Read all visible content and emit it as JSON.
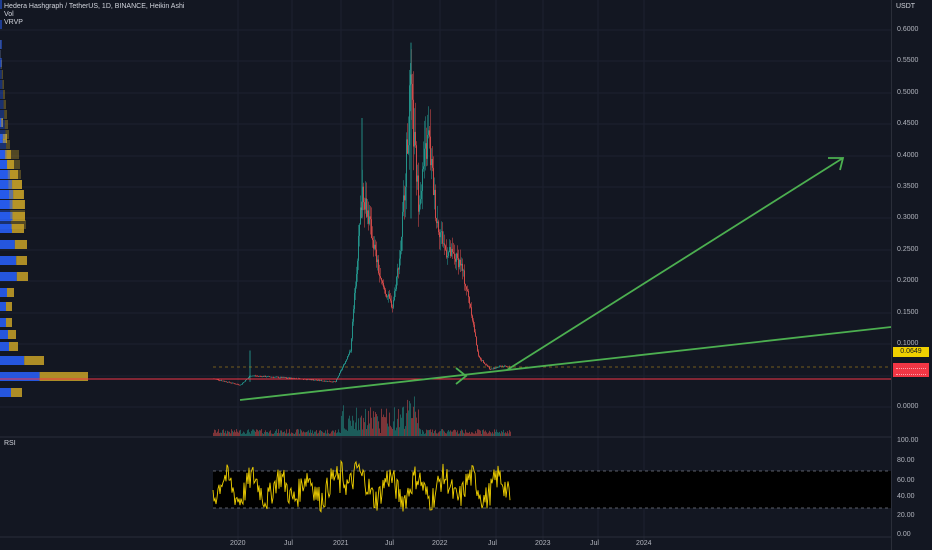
{
  "legend": {
    "title": "Hedera Hashgraph / TetherUS, 1D, BINANCE, Heikin Ashi",
    "vol": "Vol",
    "vrvp": "VRVP"
  },
  "currency": "USDT",
  "rsi_label": "RSI",
  "current_price": "0.0649",
  "price_axis_ticks": [
    "0.6000",
    "0.5500",
    "0.5000",
    "0.4500",
    "0.4000",
    "0.3500",
    "0.3000",
    "0.2500",
    "0.2000",
    "0.1500",
    "0.1000",
    "0.0000"
  ],
  "rsi_axis_ticks": [
    "100.00",
    "80.00",
    "60.00",
    "40.00",
    "20.00",
    "0.00"
  ],
  "time_axis_ticks": [
    "2020",
    "Jul",
    "2021",
    "Jul",
    "2022",
    "Jul",
    "2023",
    "Jul",
    "2024"
  ],
  "colors": {
    "background": "#131722",
    "bull": "#26a69a",
    "bear": "#ef5350",
    "arrow": "#4caf50",
    "support_line": "#f23645",
    "rsi_line": "#f0d000",
    "vrvp_up": "#2962ff",
    "vrvp_down": "#c9a227",
    "price_badge": "#f0d000"
  },
  "chart_data": {
    "type": "line",
    "series": [
      {
        "values_time": [
          "2019-10",
          "2020-01",
          "2020-03",
          "2020-06",
          "2020-09",
          "2020-12",
          "2021-02",
          "2021-04",
          "2021-05",
          "2021-07",
          "2021-09",
          "2021-10",
          "2021-11",
          "2022-01",
          "2022-03",
          "2022-05",
          "2022-06",
          "2022-08",
          "2022-09"
        ],
        "values": [
          0.045,
          0.04,
          0.035,
          0.05,
          0.045,
          0.04,
          0.06,
          0.35,
          0.3,
          0.2,
          0.5,
          0.4,
          0.35,
          0.3,
          0.22,
          0.08,
          0.06,
          0.07,
          0.065
        ]
      }
    ],
    "ylim": [
      0,
      0.6
    ]
  }
}
